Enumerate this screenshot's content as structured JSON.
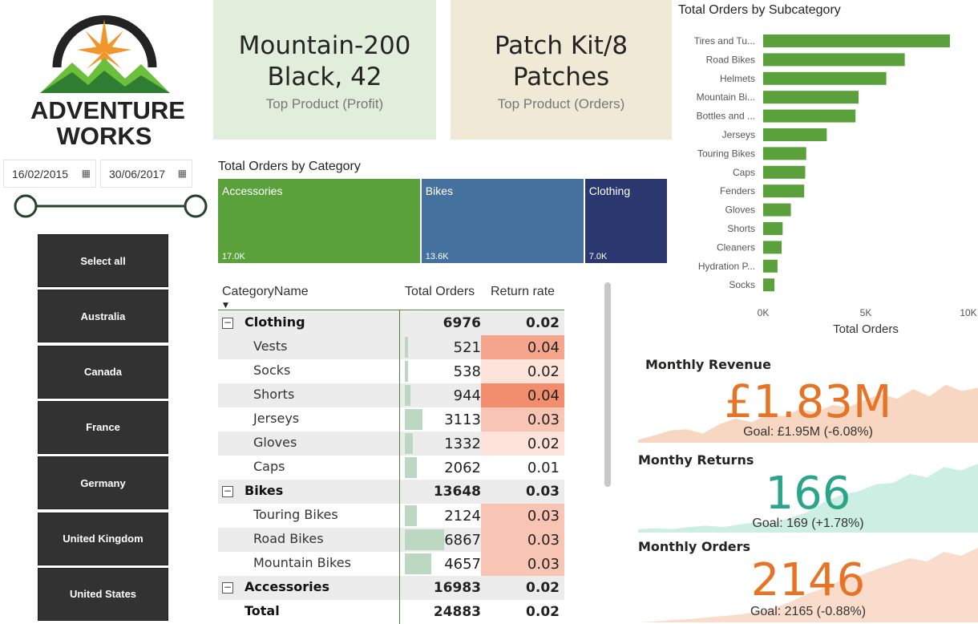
{
  "logo": {
    "line1": "ADVENTURE",
    "line2": "WORKS"
  },
  "colors": {
    "green": "#5aa13c",
    "blue": "#45719e",
    "navy": "#2b3870",
    "bar": "#5aa13c",
    "orange": "#e67326",
    "teal": "#2aa58a",
    "slicer_bg": "#323232",
    "databar": "#bcd8c2"
  },
  "date_slicer": {
    "start": "16/02/2015",
    "end": "30/06/2017",
    "icon": "calendar-icon"
  },
  "country_slicer": [
    "Select all",
    "Australia",
    "Canada",
    "France",
    "Germany",
    "United Kingdom",
    "United States"
  ],
  "kpi_cards": {
    "profit": {
      "line1": "Mountain-200",
      "line2": "Black, 42",
      "label": "Top Product (Profit)"
    },
    "orders": {
      "line1": "Patch Kit/8",
      "line2": "Patches",
      "label": "Top Product (Orders)"
    }
  },
  "treemap": {
    "title": "Total Orders by Category",
    "items": [
      {
        "name": "Accessories",
        "value_label": "17.0K",
        "value": 16983
      },
      {
        "name": "Bikes",
        "value_label": "13.6K",
        "value": 13648
      },
      {
        "name": "Clothing",
        "value_label": "7.0K",
        "value": 6976
      }
    ]
  },
  "matrix": {
    "headers": [
      "CategoryName",
      "Total Orders",
      "Return rate"
    ],
    "rows": [
      {
        "type": "category",
        "name": "Clothing",
        "orders": "6976",
        "return_rate": "0.02",
        "toggle": "⊟"
      },
      {
        "type": "sub",
        "name": "Vests",
        "orders": "521",
        "return_rate": "0.04"
      },
      {
        "type": "sub",
        "name": "Socks",
        "orders": "538",
        "return_rate": "0.02"
      },
      {
        "type": "sub",
        "name": "Shorts",
        "orders": "944",
        "return_rate": "0.04"
      },
      {
        "type": "sub",
        "name": "Jerseys",
        "orders": "3113",
        "return_rate": "0.03"
      },
      {
        "type": "sub",
        "name": "Gloves",
        "orders": "1332",
        "return_rate": "0.02"
      },
      {
        "type": "sub",
        "name": "Caps",
        "orders": "2062",
        "return_rate": "0.01"
      },
      {
        "type": "category",
        "name": "Bikes",
        "orders": "13648",
        "return_rate": "0.03",
        "toggle": "⊟"
      },
      {
        "type": "sub",
        "name": "Touring Bikes",
        "orders": "2124",
        "return_rate": "0.03"
      },
      {
        "type": "sub",
        "name": "Road Bikes",
        "orders": "6867",
        "return_rate": "0.03"
      },
      {
        "type": "sub",
        "name": "Mountain Bikes",
        "orders": "4657",
        "return_rate": "0.03"
      },
      {
        "type": "category",
        "name": "Accessories",
        "orders": "16983",
        "return_rate": "0.02",
        "toggle": "⊟"
      },
      {
        "type": "total",
        "name": "Total",
        "orders": "24883",
        "return_rate": "0.02"
      }
    ]
  },
  "chart_data": [
    {
      "type": "bar",
      "orientation": "horizontal",
      "title": "Total Orders by Subcategory",
      "xlabel": "Total Orders",
      "ylabel": "",
      "categories": [
        "Tires and Tu...",
        "Road Bikes",
        "Helmets",
        "Mountain Bi...",
        "Bottles and ...",
        "Jerseys",
        "Touring Bikes",
        "Caps",
        "Fenders",
        "Gloves",
        "Shorts",
        "Cleaners",
        "Hydration P...",
        "Socks"
      ],
      "values": [
        9100,
        6900,
        6000,
        4650,
        4500,
        3100,
        2100,
        2050,
        2000,
        1350,
        950,
        900,
        700,
        550
      ],
      "xlim": [
        0,
        10000
      ],
      "xticks": [
        "0K",
        "5K",
        "10K"
      ],
      "grid": false
    },
    {
      "type": "area",
      "title": "Monthly Revenue",
      "value": "£1.83M",
      "goal": "Goal: £1.95M (-6.08%)",
      "trend": [
        0.05,
        0.12,
        0.2,
        0.22,
        0.15,
        0.3,
        0.4,
        0.34,
        0.45,
        0.44,
        0.55,
        0.5,
        0.62,
        0.58,
        0.7,
        0.8,
        0.72,
        0.88,
        0.76,
        0.95,
        0.85,
        0.9
      ]
    },
    {
      "type": "area",
      "title": "Monthy Returns",
      "value": "166",
      "goal": "Goal: 169 (+1.78%)",
      "trend": [
        0.05,
        0.06,
        0.05,
        0.08,
        0.1,
        0.08,
        0.12,
        0.15,
        0.14,
        0.22,
        0.3,
        0.45,
        0.55,
        0.6,
        0.7,
        0.72,
        0.85,
        0.8,
        0.95,
        0.9,
        1.0
      ]
    },
    {
      "type": "area",
      "title": "Monthly Orders",
      "value": "2146",
      "goal": "Goal: 2165 (-0.88%)",
      "trend": [
        0.02,
        0.03,
        0.05,
        0.06,
        0.08,
        0.1,
        0.12,
        0.15,
        0.2,
        0.28,
        0.38,
        0.45,
        0.55,
        0.6,
        0.68,
        0.75,
        0.82,
        0.78,
        0.9,
        0.85,
        0.95
      ]
    }
  ]
}
